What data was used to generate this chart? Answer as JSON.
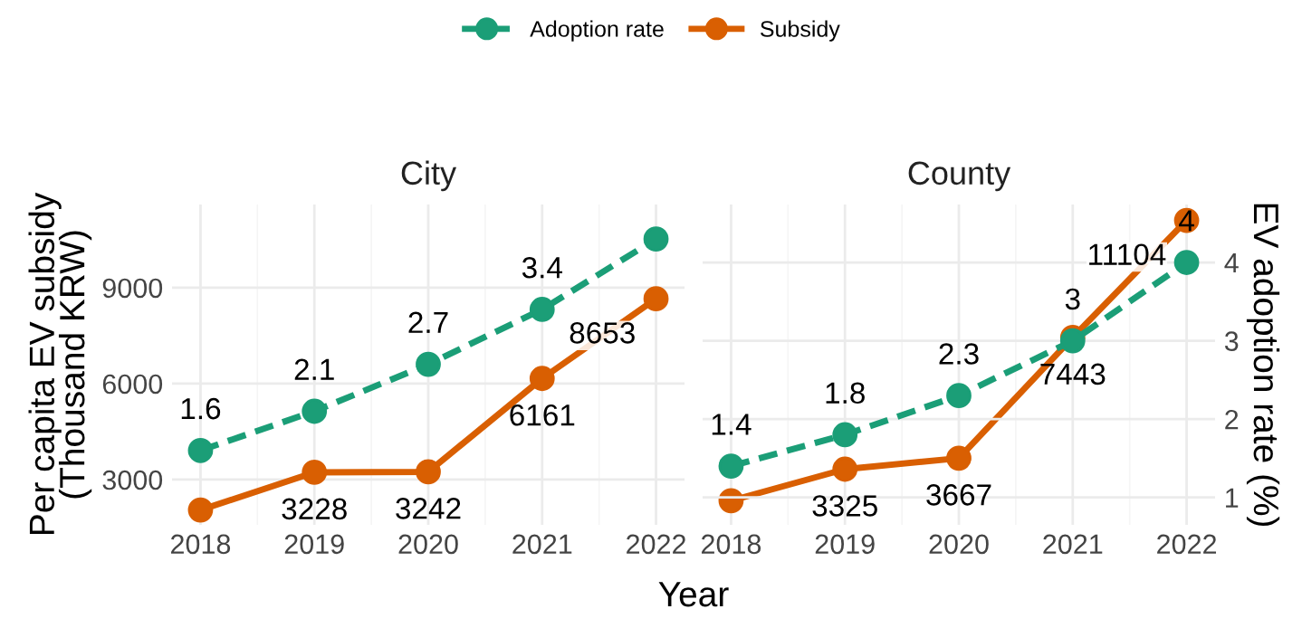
{
  "chart_data": [
    {
      "type": "line",
      "title": "City",
      "xlabel": "Year",
      "ylabel": "Per capita EV subsidy\n(Thousand KRW)",
      "categories": [
        "2018",
        "2019",
        "2020",
        "2021",
        "2022"
      ],
      "legend": "top",
      "grid": true,
      "marker": "circle",
      "tick_labels": [
        "x",
        "y"
      ],
      "ylim": [
        1585,
        11600
      ],
      "yticks": [
        3000,
        6000,
        9000
      ],
      "y2lim": [
        0.65,
        4.74
      ],
      "series": [
        {
          "name": "Adoption rate",
          "color": "#1b9e77",
          "axis": "y2",
          "line_style": "dashed",
          "values": [
            1.6,
            2.1,
            2.7,
            3.4,
            4.3
          ],
          "value_labels": [
            "1.6",
            "2.1",
            "2.7",
            "3.4",
            null
          ]
        },
        {
          "name": "Subsidy",
          "color": "#d95f02",
          "line_style": "solid",
          "values": [
            2050,
            3228,
            3242,
            6161,
            8653
          ],
          "value_labels": [
            null,
            "3228",
            "3242",
            "6161",
            "8653"
          ]
        }
      ]
    },
    {
      "type": "line",
      "title": "County",
      "y2label": "EV adoption rate (%)",
      "categories": [
        "2018",
        "2019",
        "2020",
        "2021",
        "2022"
      ],
      "grid": true,
      "marker": "circle",
      "tick_labels": [
        "x",
        "y2"
      ],
      "ylim": [
        1585,
        11600
      ],
      "y2lim": [
        0.65,
        4.74
      ],
      "y2ticks": [
        1,
        2,
        3,
        4
      ],
      "series": [
        {
          "name": "Adoption rate",
          "color": "#1b9e77",
          "axis": "y2",
          "line_style": "dashed",
          "values": [
            1.4,
            1.8,
            2.3,
            3,
            4
          ],
          "value_labels": [
            "1.4",
            "1.8",
            "2.3",
            "3",
            "4"
          ]
        },
        {
          "name": "Subsidy",
          "color": "#d95f02",
          "line_style": "solid",
          "values": [
            2340,
            3325,
            3667,
            7443,
            11104
          ],
          "value_labels": [
            null,
            "3325",
            "3667",
            "7443",
            "11104"
          ]
        }
      ]
    }
  ]
}
